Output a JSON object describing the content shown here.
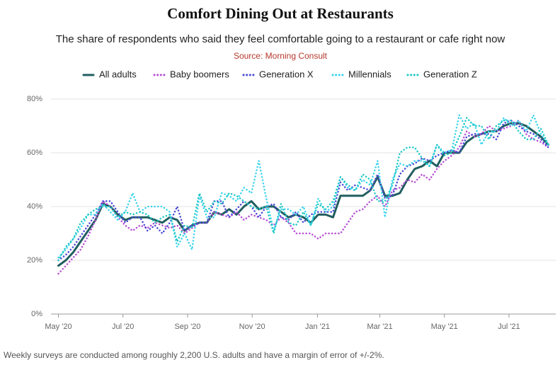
{
  "chart_data": {
    "type": "line",
    "title": "Comfort Dining Out at Restaurants",
    "subtitle": "The share of respondents who said they feel comfortable going to a restaurant or cafe right now",
    "source": "Source: Morning Consult",
    "note": "Weekly surveys are conducted among roughly 2,200 U.S. adults and have a margin of error of +/-2%.",
    "x": [
      0,
      1,
      2,
      3,
      4,
      5,
      6,
      7,
      8,
      9,
      10,
      11,
      12,
      13,
      14,
      15,
      16,
      17,
      18,
      19,
      20,
      21,
      22,
      23,
      24,
      25,
      26,
      27,
      28,
      29,
      30,
      31,
      32,
      33,
      34,
      35,
      36,
      37,
      38,
      39,
      40,
      41,
      42,
      43,
      44,
      45,
      46,
      47,
      48,
      49,
      50,
      51,
      52,
      53,
      54,
      55,
      56,
      57,
      58,
      59,
      60,
      61,
      62,
      63,
      64,
      65,
      66
    ],
    "xlim": [
      -1,
      67
    ],
    "xticks": [
      {
        "value": 0,
        "label": "May '20"
      },
      {
        "value": 8.7,
        "label": "Jul '20"
      },
      {
        "value": 17.4,
        "label": "Sep '20"
      },
      {
        "value": 26.1,
        "label": "Nov '20"
      },
      {
        "value": 34.9,
        "label": "Jan '21"
      },
      {
        "value": 43.3,
        "label": "Mar '21"
      },
      {
        "value": 52,
        "label": "May '21"
      },
      {
        "value": 60.7,
        "label": "Jul '21"
      }
    ],
    "ylim": [
      0,
      80
    ],
    "yticks": [
      {
        "value": 0,
        "label": "0%"
      },
      {
        "value": 20,
        "label": "20%"
      },
      {
        "value": 40,
        "label": "40%"
      },
      {
        "value": 60,
        "label": "60%"
      },
      {
        "value": 80,
        "label": "80%"
      }
    ],
    "grid": true,
    "legend": "top",
    "series": [
      {
        "name": "All adults",
        "color": "#215e60",
        "line_style": "solid",
        "values": [
          18,
          20,
          23,
          27,
          31,
          35,
          41,
          40,
          37,
          35,
          36,
          36,
          36,
          35,
          34,
          36,
          35,
          31,
          33,
          34,
          34,
          38,
          37,
          39,
          37,
          40,
          42,
          39,
          40,
          40,
          38,
          36,
          37,
          36,
          34,
          37,
          37,
          36,
          44,
          44,
          44,
          44,
          46,
          51,
          44,
          44,
          45,
          50,
          54,
          55,
          57,
          55,
          60,
          60,
          60,
          64,
          66,
          67,
          68,
          68,
          70,
          71,
          71,
          70,
          68,
          66,
          63
        ]
      },
      {
        "name": "Baby boomers",
        "color": "#b64ed4",
        "line_style": "dotted",
        "values": [
          15,
          18,
          21,
          24,
          29,
          35,
          42,
          40,
          36,
          33,
          31,
          33,
          32,
          34,
          33,
          32,
          33,
          30,
          32,
          34,
          34,
          38,
          37,
          36,
          38,
          35,
          37,
          36,
          35,
          33,
          36,
          34,
          30,
          30,
          30,
          28,
          30,
          30,
          30,
          34,
          38,
          39,
          42,
          44,
          40,
          46,
          47,
          50,
          49,
          52,
          50,
          54,
          57,
          59,
          62,
          68,
          66,
          67,
          70,
          68,
          69,
          70,
          72,
          67,
          65,
          64,
          62
        ]
      },
      {
        "name": "Generation X",
        "color": "#4b48d6",
        "line_style": "dotted",
        "values": [
          20,
          22,
          25,
          29,
          33,
          37,
          42,
          42,
          38,
          34,
          36,
          36,
          31,
          33,
          30,
          34,
          40,
          31,
          33,
          34,
          34,
          42,
          42,
          36,
          39,
          42,
          40,
          36,
          40,
          41,
          36,
          35,
          38,
          34,
          37,
          38,
          38,
          38,
          49,
          46,
          48,
          47,
          46,
          52,
          43,
          44,
          52,
          55,
          56,
          58,
          57,
          59,
          60,
          61,
          60,
          66,
          67,
          67,
          67,
          65,
          71,
          72,
          70,
          68,
          67,
          65,
          62
        ]
      },
      {
        "name": "Millennials",
        "color": "#3ad4ee",
        "line_style": "dotted",
        "values": [
          21,
          24,
          28,
          32,
          37,
          37,
          41,
          38,
          35,
          38,
          45,
          38,
          40,
          40,
          40,
          38,
          25,
          30,
          24,
          44,
          36,
          36,
          45,
          44,
          42,
          47,
          45,
          57,
          43,
          31,
          39,
          39,
          37,
          40,
          33,
          43,
          38,
          40,
          51,
          47,
          46,
          50,
          48,
          57,
          36,
          50,
          56,
          55,
          57,
          57,
          55,
          63,
          60,
          61,
          74,
          69,
          71,
          63,
          68,
          68,
          73,
          70,
          72,
          68,
          74,
          67,
          63
        ]
      },
      {
        "name": "Generation Z",
        "color": "#1fc9c6",
        "line_style": "dotted",
        "values": [
          20,
          25,
          28,
          34,
          37,
          39,
          40,
          40,
          36,
          38,
          37,
          38,
          37,
          34,
          36,
          37,
          27,
          33,
          32,
          45,
          38,
          42,
          41,
          45,
          44,
          42,
          40,
          39,
          40,
          30,
          41,
          34,
          33,
          38,
          33,
          41,
          39,
          42,
          51,
          48,
          46,
          52,
          50,
          42,
          42,
          48,
          60,
          62,
          62,
          58,
          55,
          63,
          59,
          60,
          66,
          73,
          70,
          70,
          65,
          70,
          72,
          72,
          68,
          65,
          65,
          69,
          63
        ]
      }
    ]
  }
}
